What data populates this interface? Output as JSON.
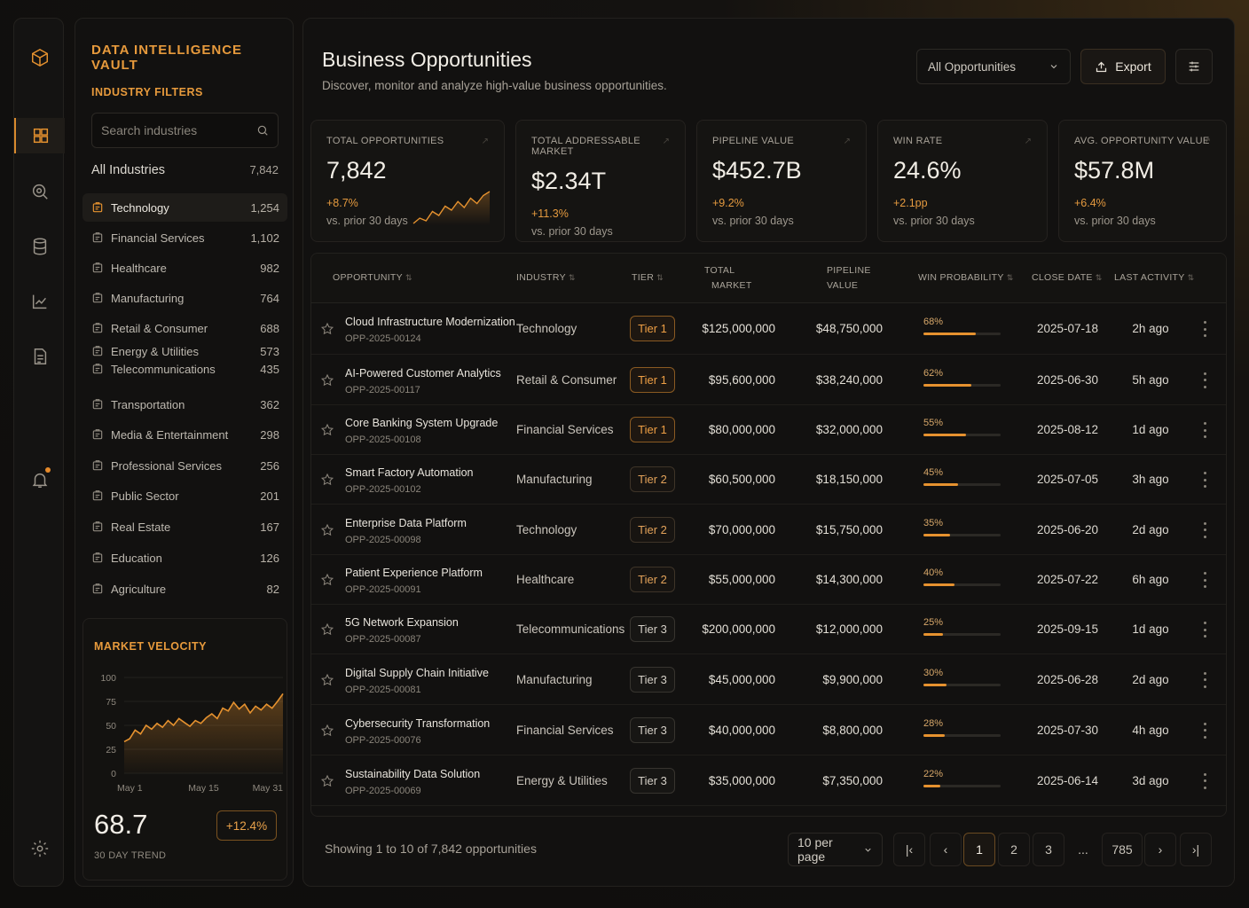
{
  "sidebar": {
    "brand": "DATA INTELLIGENCE VAULT",
    "filters_title": "INDUSTRY FILTERS",
    "search_placeholder": "Search industries",
    "all": {
      "label": "All Industries",
      "count": "7,842"
    },
    "items": [
      {
        "label": "Technology",
        "count": "1,254",
        "icon": "briefcase-icon"
      },
      {
        "label": "Financial Services",
        "count": "1,102",
        "icon": "bank-icon"
      },
      {
        "label": "Healthcare",
        "count": "982",
        "icon": "heart-icon"
      },
      {
        "label": "Manufacturing",
        "count": "764",
        "icon": "factory-icon"
      },
      {
        "label": "Retail & Consumer",
        "count": "688",
        "icon": "shopping-bag-icon"
      },
      {
        "label": "Energy & Utilities",
        "count": "573",
        "icon": "leaf-icon"
      },
      {
        "label": "Telecommunications",
        "count": "435",
        "icon": "signal-icon"
      },
      {
        "label": "Transportation",
        "count": "362",
        "icon": "truck-icon"
      },
      {
        "label": "Media & Entertainment",
        "count": "298",
        "icon": "film-icon"
      },
      {
        "label": "Professional Services",
        "count": "256",
        "icon": "users-icon"
      },
      {
        "label": "Public Sector",
        "count": "201",
        "icon": "building-icon"
      },
      {
        "label": "Real Estate",
        "count": "167",
        "icon": "home-icon"
      },
      {
        "label": "Education",
        "count": "126",
        "icon": "graduation-cap-icon"
      },
      {
        "label": "Agriculture",
        "count": "82",
        "icon": "sprout-icon"
      }
    ]
  },
  "velocity": {
    "title": "MARKET VELOCITY",
    "value": "68.7",
    "subtitle": "30 DAY TREND",
    "change": "+12.4%",
    "chart_data": {
      "type": "area",
      "x_ticks": [
        "May 1",
        "May 15",
        "May 31"
      ],
      "y_ticks": [
        "100",
        "75",
        "50",
        "25",
        "0"
      ],
      "ylim": [
        0,
        100
      ],
      "values": [
        33,
        36,
        45,
        41,
        50,
        46,
        52,
        48,
        55,
        50,
        57,
        53,
        49,
        55,
        52,
        58,
        62,
        57,
        68,
        65,
        74,
        67,
        72,
        63,
        70,
        66,
        72,
        68,
        75,
        83
      ]
    }
  },
  "header": {
    "title": "Business Opportunities",
    "subtitle": "Discover, monitor and analyze high-value business opportunities.",
    "dropdown": "All Opportunities",
    "export": "Export"
  },
  "kpis": [
    {
      "label": "TOTAL OPPORTUNITIES",
      "value": "7,842",
      "delta": "+8.7%",
      "compare": "vs. prior 30 days"
    },
    {
      "label": "TOTAL ADDRESSABLE MARKET",
      "value": "$2.34T",
      "delta": "+11.3%",
      "compare": "vs. prior 30 days"
    },
    {
      "label": "PIPELINE VALUE",
      "value": "$452.7B",
      "delta": "+9.2%",
      "compare": "vs. prior 30 days"
    },
    {
      "label": "WIN RATE",
      "value": "24.6%",
      "delta": "+2.1pp",
      "compare": "vs. prior 30 days"
    },
    {
      "label": "AVG. OPPORTUNITY VALUE",
      "value": "$57.8M",
      "delta": "+6.4%",
      "compare": "vs. prior 30 days"
    }
  ],
  "spark": [
    22,
    30,
    26,
    40,
    34,
    48,
    42,
    55,
    46,
    60,
    52,
    64,
    70
  ],
  "table": {
    "columns": {
      "opportunity": "OPPORTUNITY",
      "industry": "INDUSTRY",
      "tier": "TIER",
      "tam_line1": "TOTAL",
      "tam_line2": "MARKET",
      "pipeline_line1": "PIPELINE",
      "pipeline_line2": "VALUE",
      "win": "WIN PROBABILITY",
      "close": "CLOSE DATE",
      "activity": "LAST ACTIVITY"
    },
    "rows": [
      {
        "name": "Cloud Infrastructure Modernization",
        "id": "OPP-2025-00124",
        "industry": "Technology",
        "tier": "Tier 1",
        "tam": "$125,000,000",
        "pipeline": "$48,750,000",
        "win": "68%",
        "win_frac": 0.68,
        "close": "2025-07-18",
        "activity": "2h ago"
      },
      {
        "name": "AI-Powered Customer Analytics",
        "id": "OPP-2025-00117",
        "industry": "Retail & Consumer",
        "tier": "Tier 1",
        "tam": "$95,600,000",
        "pipeline": "$38,240,000",
        "win": "62%",
        "win_frac": 0.62,
        "close": "2025-06-30",
        "activity": "5h ago"
      },
      {
        "name": "Core Banking System Upgrade",
        "id": "OPP-2025-00108",
        "industry": "Financial Services",
        "tier": "Tier 1",
        "tam": "$80,000,000",
        "pipeline": "$32,000,000",
        "win": "55%",
        "win_frac": 0.55,
        "close": "2025-08-12",
        "activity": "1d ago"
      },
      {
        "name": "Smart Factory Automation",
        "id": "OPP-2025-00102",
        "industry": "Manufacturing",
        "tier": "Tier 2",
        "tam": "$60,500,000",
        "pipeline": "$18,150,000",
        "win": "45%",
        "win_frac": 0.45,
        "close": "2025-07-05",
        "activity": "3h ago"
      },
      {
        "name": "Enterprise Data Platform",
        "id": "OPP-2025-00098",
        "industry": "Technology",
        "tier": "Tier 2",
        "tam": "$70,000,000",
        "pipeline": "$15,750,000",
        "win": "35%",
        "win_frac": 0.35,
        "close": "2025-06-20",
        "activity": "2d ago"
      },
      {
        "name": "Patient Experience Platform",
        "id": "OPP-2025-00091",
        "industry": "Healthcare",
        "tier": "Tier 2",
        "tam": "$55,000,000",
        "pipeline": "$14,300,000",
        "win": "40%",
        "win_frac": 0.4,
        "close": "2025-07-22",
        "activity": "6h ago"
      },
      {
        "name": "5G Network Expansion",
        "id": "OPP-2025-00087",
        "industry": "Telecommunications",
        "tier": "Tier 3",
        "tam": "$200,000,000",
        "pipeline": "$12,000,000",
        "win": "25%",
        "win_frac": 0.25,
        "close": "2025-09-15",
        "activity": "1d ago"
      },
      {
        "name": "Digital Supply Chain Initiative",
        "id": "OPP-2025-00081",
        "industry": "Manufacturing",
        "tier": "Tier 3",
        "tam": "$45,000,000",
        "pipeline": "$9,900,000",
        "win": "30%",
        "win_frac": 0.3,
        "close": "2025-06-28",
        "activity": "2d ago"
      },
      {
        "name": "Cybersecurity Transformation",
        "id": "OPP-2025-00076",
        "industry": "Financial Services",
        "tier": "Tier 3",
        "tam": "$40,000,000",
        "pipeline": "$8,800,000",
        "win": "28%",
        "win_frac": 0.28,
        "close": "2025-07-30",
        "activity": "4h ago"
      },
      {
        "name": "Sustainability Data Solution",
        "id": "OPP-2025-00069",
        "industry": "Energy & Utilities",
        "tier": "Tier 3",
        "tam": "$35,000,000",
        "pipeline": "$7,350,000",
        "win": "22%",
        "win_frac": 0.22,
        "close": "2025-06-14",
        "activity": "3d ago"
      }
    ]
  },
  "footer": {
    "showing": "Showing 1 to 10 of 7,842 opportunities",
    "per_page": "10 per page",
    "pages": [
      "1",
      "2",
      "3",
      "...",
      "785"
    ],
    "current": "1"
  },
  "colors": {
    "accent": "#e6922f",
    "background": "#0e0d0c",
    "panel": "#121110"
  }
}
